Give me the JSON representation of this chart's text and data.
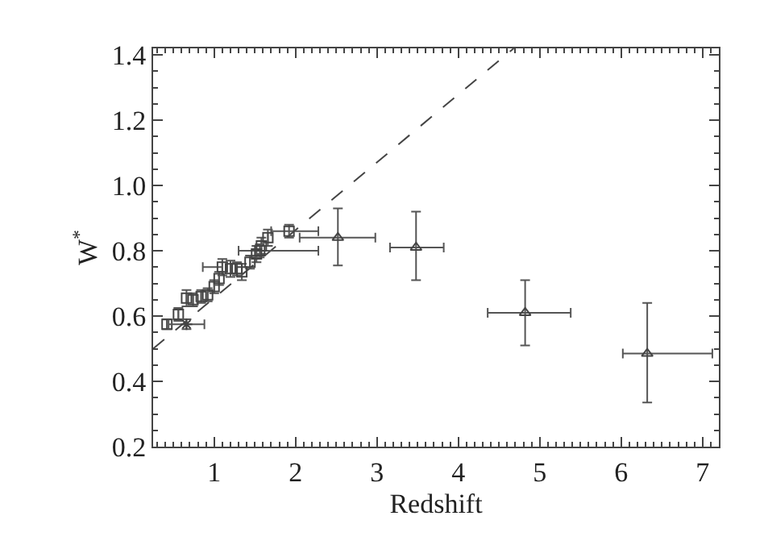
{
  "chart_data": {
    "type": "scatter",
    "xlabel": "Redshift",
    "ylabel": "W$^{*}$",
    "xlim": [
      0.25,
      7.2
    ],
    "ylim": [
      0.2,
      1.42
    ],
    "xticks": [
      1,
      2,
      3,
      4,
      5,
      6,
      7
    ],
    "yticks": [
      0.2,
      0.4,
      0.6,
      0.8,
      {
        "value": 1,
        "label": "1.0"
      },
      1.2,
      1.4
    ],
    "grid": false,
    "series": [
      {
        "type": "line",
        "color": "#444444",
        "line_style": "dashed",
        "marker": "none",
        "x": [
          0.25,
          4.68
        ],
        "values": [
          0.5,
          1.42
        ]
      },
      {
        "color": "#444444",
        "marker": "square",
        "x": [
          0.42,
          0.56,
          0.66,
          0.74,
          0.84,
          0.92,
          1.0,
          1.06,
          1.1,
          1.2,
          1.28,
          1.34,
          1.44,
          1.52,
          1.56,
          1.58,
          1.66,
          1.92
        ],
        "values": [
          0.575,
          0.605,
          0.655,
          0.65,
          0.66,
          0.665,
          0.69,
          0.715,
          0.75,
          0.745,
          0.745,
          0.735,
          0.765,
          0.79,
          0.8,
          0.815,
          0.84,
          0.86
        ],
        "errors": [
          0.015,
          0.02,
          0.025,
          0.02,
          0.02,
          0.02,
          0.02,
          0.02,
          0.025,
          0.025,
          0.02,
          0.025,
          0.02,
          0.025,
          0.02,
          0.025,
          0.025,
          0.02
        ],
        "xerrors": [
          null,
          null,
          null,
          null,
          null,
          null,
          null,
          null,
          [
            0.86,
            1.1
          ],
          null,
          null,
          null,
          null,
          null,
          [
            1.3,
            2.28
          ],
          null,
          null,
          [
            1.7,
            2.28
          ]
        ]
      },
      {
        "color": "#444444",
        "marker": "cross",
        "x": [
          0.66
        ],
        "values": [
          0.575
        ],
        "errors": [
          0.015
        ],
        "xerrors": [
          [
            0.44,
            0.88
          ]
        ]
      },
      {
        "color": "#444444",
        "marker": "triangle",
        "x": [
          2.52,
          3.48,
          4.82,
          6.32
        ],
        "values": [
          0.84,
          0.81,
          0.61,
          0.485
        ],
        "errors": [
          [
            0.755,
            0.93
          ],
          [
            0.71,
            0.92
          ],
          [
            0.51,
            0.71
          ],
          [
            0.335,
            0.64
          ]
        ],
        "xerrors": [
          [
            2.05,
            2.98
          ],
          [
            3.16,
            3.82
          ],
          [
            4.36,
            5.38
          ],
          [
            6.02,
            7.12
          ]
        ]
      }
    ]
  }
}
